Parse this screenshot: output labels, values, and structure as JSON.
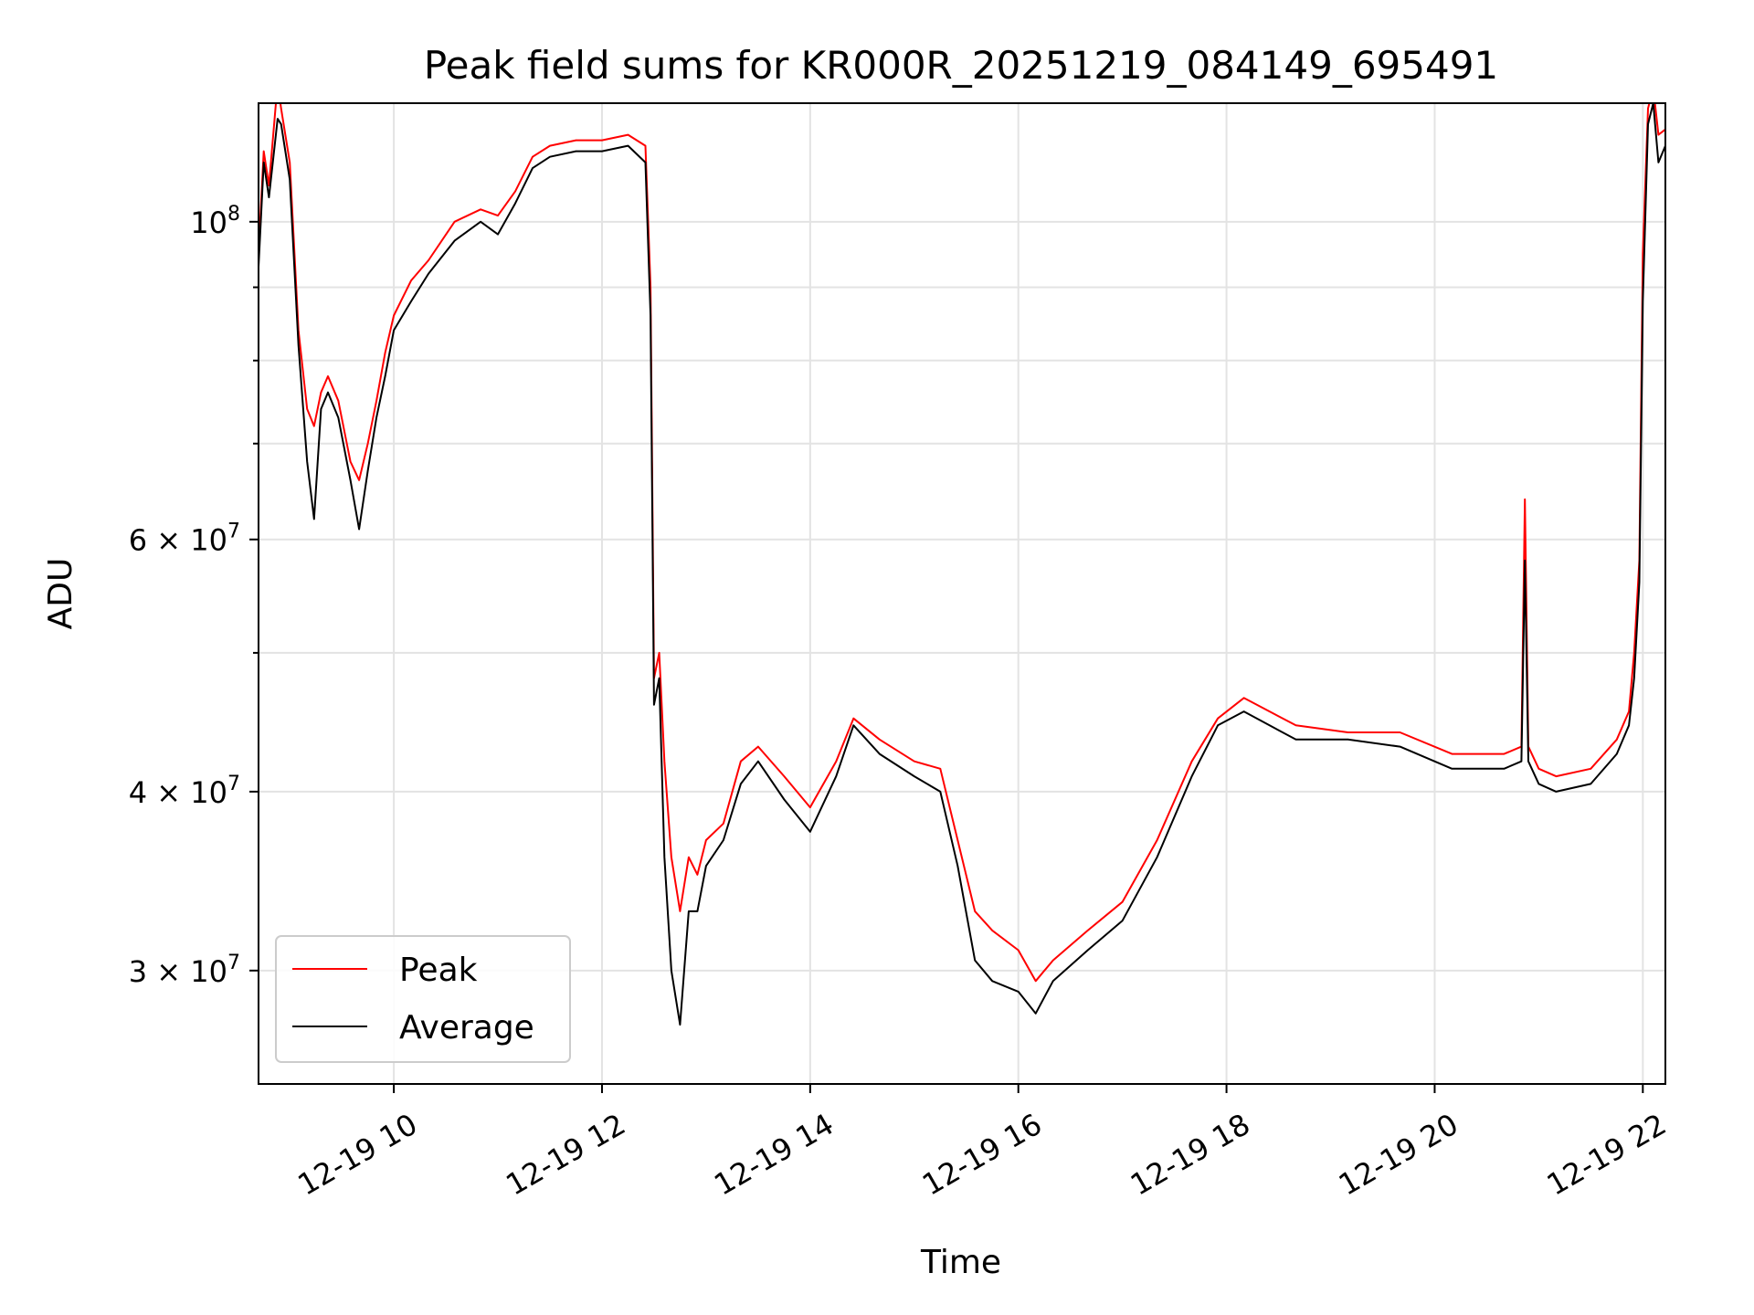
{
  "chart_data": {
    "type": "line",
    "title": "Peak field sums for KR000R_20251219_084149_695491",
    "xlabel": "Time",
    "ylabel": "ADU",
    "yscale": "log",
    "grid": true,
    "legend_position": "lower-left",
    "xlim": [
      "2025-12-19 08:42",
      "2025-12-19 22:13"
    ],
    "ylim": [
      25000000,
      121000000
    ],
    "x_ticks": [
      "2025-12-19 10:00",
      "2025-12-19 12:00",
      "2025-12-19 14:00",
      "2025-12-19 16:00",
      "2025-12-19 18:00",
      "2025-12-19 20:00",
      "2025-12-19 22:00"
    ],
    "x_tick_labels": [
      "12-19 10",
      "12-19 12",
      "12-19 14",
      "12-19 16",
      "12-19 18",
      "12-19 20",
      "12-19 22"
    ],
    "y_ticks": [
      100000000,
      60000000,
      40000000,
      30000000
    ],
    "y_tick_labels": [
      {
        "base": "10",
        "exp": "8"
      },
      {
        "base": "6 × 10",
        "exp": "7"
      },
      {
        "base": "4 × 10",
        "exp": "7"
      },
      {
        "base": "3 × 10",
        "exp": "7"
      }
    ],
    "y_minor_ticks": [
      50000000,
      70000000,
      80000000,
      90000000
    ],
    "series": [
      {
        "name": "Peak",
        "color": "#ff0000",
        "x": [
          "2025-12-19 08:42",
          "2025-12-19 08:45",
          "2025-12-19 08:48",
          "2025-12-19 08:53",
          "2025-12-19 08:55",
          "2025-12-19 09:00",
          "2025-12-19 09:05",
          "2025-12-19 09:10",
          "2025-12-19 09:14",
          "2025-12-19 09:18",
          "2025-12-19 09:22",
          "2025-12-19 09:28",
          "2025-12-19 09:35",
          "2025-12-19 09:40",
          "2025-12-19 09:45",
          "2025-12-19 09:50",
          "2025-12-19 09:55",
          "2025-12-19 10:00",
          "2025-12-19 10:10",
          "2025-12-19 10:20",
          "2025-12-19 10:35",
          "2025-12-19 10:50",
          "2025-12-19 11:00",
          "2025-12-19 11:10",
          "2025-12-19 11:20",
          "2025-12-19 11:30",
          "2025-12-19 11:45",
          "2025-12-19 12:00",
          "2025-12-19 12:15",
          "2025-12-19 12:25",
          "2025-12-19 12:28",
          "2025-12-19 12:30",
          "2025-12-19 12:33",
          "2025-12-19 12:36",
          "2025-12-19 12:40",
          "2025-12-19 12:45",
          "2025-12-19 12:50",
          "2025-12-19 12:55",
          "2025-12-19 13:00",
          "2025-12-19 13:10",
          "2025-12-19 13:20",
          "2025-12-19 13:30",
          "2025-12-19 13:45",
          "2025-12-19 14:00",
          "2025-12-19 14:15",
          "2025-12-19 14:25",
          "2025-12-19 14:40",
          "2025-12-19 15:00",
          "2025-12-19 15:15",
          "2025-12-19 15:25",
          "2025-12-19 15:35",
          "2025-12-19 15:45",
          "2025-12-19 16:00",
          "2025-12-19 16:10",
          "2025-12-19 16:20",
          "2025-12-19 16:40",
          "2025-12-19 17:00",
          "2025-12-19 17:20",
          "2025-12-19 17:40",
          "2025-12-19 17:55",
          "2025-12-19 18:10",
          "2025-12-19 18:40",
          "2025-12-19 19:10",
          "2025-12-19 19:40",
          "2025-12-19 20:10",
          "2025-12-19 20:40",
          "2025-12-19 20:50",
          "2025-12-19 20:52",
          "2025-12-19 20:54",
          "2025-12-19 21:00",
          "2025-12-19 21:10",
          "2025-12-19 21:30",
          "2025-12-19 21:45",
          "2025-12-19 21:52",
          "2025-12-19 21:55",
          "2025-12-19 21:58",
          "2025-12-19 22:00",
          "2025-12-19 22:03",
          "2025-12-19 22:06",
          "2025-12-19 22:09",
          "2025-12-19 22:13"
        ],
        "y": [
          95000000,
          112000000,
          106000000,
          125000000,
          120000000,
          110000000,
          84000000,
          74000000,
          72000000,
          76000000,
          78000000,
          75000000,
          68000000,
          66000000,
          70000000,
          75000000,
          81000000,
          86000000,
          91000000,
          94000000,
          100000000,
          102000000,
          101000000,
          105000000,
          111000000,
          113000000,
          114000000,
          114000000,
          115000000,
          113000000,
          90000000,
          48000000,
          50000000,
          42000000,
          36000000,
          33000000,
          36000000,
          35000000,
          37000000,
          38000000,
          42000000,
          43000000,
          41000000,
          39000000,
          42000000,
          45000000,
          43500000,
          42000000,
          41500000,
          37000000,
          33000000,
          32000000,
          31000000,
          29500000,
          30500000,
          32000000,
          33500000,
          37000000,
          42000000,
          45000000,
          46500000,
          44500000,
          44000000,
          44000000,
          42500000,
          42500000,
          43000000,
          64000000,
          43000000,
          41500000,
          41000000,
          41500000,
          43500000,
          45500000,
          50000000,
          58000000,
          95000000,
          120000000,
          124000000,
          115000000,
          116000000
        ]
      },
      {
        "name": "Average",
        "color": "#000000",
        "x": [
          "2025-12-19 08:42",
          "2025-12-19 08:45",
          "2025-12-19 08:48",
          "2025-12-19 08:53",
          "2025-12-19 08:55",
          "2025-12-19 09:00",
          "2025-12-19 09:05",
          "2025-12-19 09:10",
          "2025-12-19 09:14",
          "2025-12-19 09:18",
          "2025-12-19 09:22",
          "2025-12-19 09:28",
          "2025-12-19 09:35",
          "2025-12-19 09:40",
          "2025-12-19 09:45",
          "2025-12-19 09:50",
          "2025-12-19 09:55",
          "2025-12-19 10:00",
          "2025-12-19 10:10",
          "2025-12-19 10:20",
          "2025-12-19 10:35",
          "2025-12-19 10:50",
          "2025-12-19 11:00",
          "2025-12-19 11:10",
          "2025-12-19 11:20",
          "2025-12-19 11:30",
          "2025-12-19 11:45",
          "2025-12-19 12:00",
          "2025-12-19 12:15",
          "2025-12-19 12:25",
          "2025-12-19 12:28",
          "2025-12-19 12:30",
          "2025-12-19 12:33",
          "2025-12-19 12:36",
          "2025-12-19 12:40",
          "2025-12-19 12:45",
          "2025-12-19 12:50",
          "2025-12-19 12:55",
          "2025-12-19 13:00",
          "2025-12-19 13:10",
          "2025-12-19 13:20",
          "2025-12-19 13:30",
          "2025-12-19 13:45",
          "2025-12-19 14:00",
          "2025-12-19 14:15",
          "2025-12-19 14:25",
          "2025-12-19 14:40",
          "2025-12-19 15:00",
          "2025-12-19 15:15",
          "2025-12-19 15:25",
          "2025-12-19 15:35",
          "2025-12-19 15:45",
          "2025-12-19 16:00",
          "2025-12-19 16:10",
          "2025-12-19 16:20",
          "2025-12-19 16:40",
          "2025-12-19 17:00",
          "2025-12-19 17:20",
          "2025-12-19 17:40",
          "2025-12-19 17:55",
          "2025-12-19 18:10",
          "2025-12-19 18:40",
          "2025-12-19 19:10",
          "2025-12-19 19:40",
          "2025-12-19 20:10",
          "2025-12-19 20:40",
          "2025-12-19 20:50",
          "2025-12-19 20:52",
          "2025-12-19 20:54",
          "2025-12-19 21:00",
          "2025-12-19 21:10",
          "2025-12-19 21:30",
          "2025-12-19 21:45",
          "2025-12-19 21:52",
          "2025-12-19 21:55",
          "2025-12-19 21:58",
          "2025-12-19 22:00",
          "2025-12-19 22:03",
          "2025-12-19 22:06",
          "2025-12-19 22:09",
          "2025-12-19 22:13"
        ],
        "y": [
          93000000,
          110000000,
          104000000,
          118000000,
          117000000,
          107000000,
          82000000,
          68000000,
          62000000,
          74000000,
          76000000,
          73000000,
          66000000,
          61000000,
          67000000,
          73000000,
          78000000,
          84000000,
          88000000,
          92000000,
          97000000,
          100000000,
          98000000,
          103000000,
          109000000,
          111000000,
          112000000,
          112000000,
          113000000,
          110000000,
          86000000,
          46000000,
          48000000,
          36000000,
          30000000,
          27500000,
          33000000,
          33000000,
          35500000,
          37000000,
          40500000,
          42000000,
          39500000,
          37500000,
          41000000,
          44500000,
          42500000,
          41000000,
          40000000,
          35500000,
          30500000,
          29500000,
          29000000,
          28000000,
          29500000,
          31000000,
          32500000,
          36000000,
          41000000,
          44500000,
          45500000,
          43500000,
          43500000,
          43000000,
          41500000,
          41500000,
          42000000,
          58000000,
          42000000,
          40500000,
          40000000,
          40500000,
          42500000,
          44500000,
          48000000,
          56000000,
          88000000,
          117000000,
          121000000,
          110000000,
          113000000
        ]
      }
    ]
  }
}
